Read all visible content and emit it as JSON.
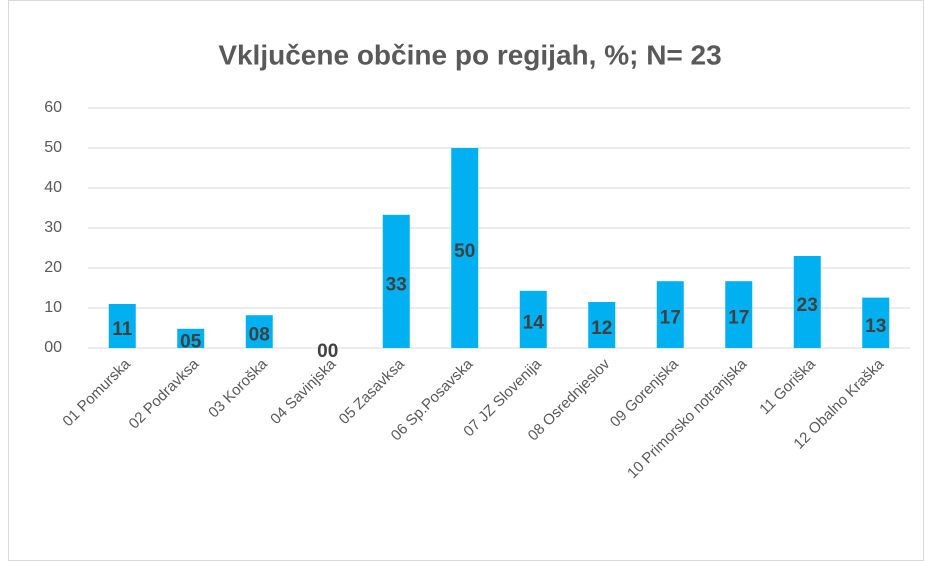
{
  "chart_data": {
    "type": "bar",
    "title": "Vključene občine po regijah, %; N= 23",
    "categories": [
      "01 Pomurska",
      "02 Podravksa",
      "03 Koroška",
      "04 Savinjska",
      "05 Zasavksa",
      "06 Sp.Posavska",
      "07 JZ Slovenija",
      "08 Osrednjeslov",
      "09 Gorenjska",
      "10 Primorsko notranjska",
      "11 Goriška",
      "12 Obalno Kraška"
    ],
    "values": [
      11,
      4.8,
      8.2,
      0,
      33.3,
      50,
      14.3,
      11.5,
      16.7,
      16.7,
      23,
      12.6
    ],
    "value_labels": [
      "11",
      "05",
      "08",
      "00",
      "33",
      "50",
      "14",
      "12",
      "17",
      "17",
      "23",
      "13"
    ],
    "color": "#00b0f0",
    "ylim": [
      0,
      60
    ],
    "yticks": [
      {
        "value": 0,
        "label": "00"
      },
      10,
      20,
      30,
      40,
      50,
      60
    ],
    "grid": true
  }
}
